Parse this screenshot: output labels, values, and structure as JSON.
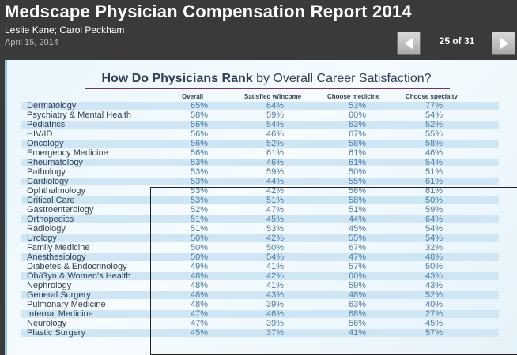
{
  "header": {
    "title": "Medscape Physician Compensation Report 2014",
    "authors": "Leslie Kane; Carol Peckham",
    "date": "April 15, 2014",
    "page_indicator": "25 of 31"
  },
  "chart": {
    "title_bold": "How Do Physicians Rank",
    "title_rest": " by Overall Career Satisfaction?",
    "columns": [
      "Overall",
      "Satisfied w/income",
      "Choose medicine",
      "Choose specialty"
    ],
    "rows": [
      {
        "specialty": "Dermatology",
        "overall": "65%",
        "income": "64%",
        "medicine": "53%",
        "specialty_choice": "77%"
      },
      {
        "specialty": "Psychiatry & Mental Health",
        "overall": "58%",
        "income": "59%",
        "medicine": "60%",
        "specialty_choice": "54%"
      },
      {
        "specialty": "Pediatrics",
        "overall": "56%",
        "income": "54%",
        "medicine": "63%",
        "specialty_choice": "52%"
      },
      {
        "specialty": "HIV/ID",
        "overall": "56%",
        "income": "46%",
        "medicine": "67%",
        "specialty_choice": "55%"
      },
      {
        "specialty": "Oncology",
        "overall": "56%",
        "income": "52%",
        "medicine": "58%",
        "specialty_choice": "58%"
      },
      {
        "specialty": "Emergency Medicine",
        "overall": "56%",
        "income": "61%",
        "medicine": "61%",
        "specialty_choice": "46%"
      },
      {
        "specialty": "Rheumatology",
        "overall": "53%",
        "income": "46%",
        "medicine": "61%",
        "specialty_choice": "54%"
      },
      {
        "specialty": "Pathology",
        "overall": "53%",
        "income": "59%",
        "medicine": "50%",
        "specialty_choice": "51%"
      },
      {
        "specialty": "Cardiology",
        "overall": "53%",
        "income": "44%",
        "medicine": "55%",
        "specialty_choice": "61%"
      },
      {
        "specialty": "Ophthalmology",
        "overall": "53%",
        "income": "42%",
        "medicine": "56%",
        "specialty_choice": "61%"
      },
      {
        "specialty": "Critical Care",
        "overall": "53%",
        "income": "51%",
        "medicine": "58%",
        "specialty_choice": "50%"
      },
      {
        "specialty": "Gastroenterology",
        "overall": "52%",
        "income": "47%",
        "medicine": "51%",
        "specialty_choice": "59%"
      },
      {
        "specialty": "Orthopedics",
        "overall": "51%",
        "income": "45%",
        "medicine": "44%",
        "specialty_choice": "64%"
      },
      {
        "specialty": "Radiology",
        "overall": "51%",
        "income": "53%",
        "medicine": "45%",
        "specialty_choice": "54%"
      },
      {
        "specialty": "Urology",
        "overall": "50%",
        "income": "42%",
        "medicine": "55%",
        "specialty_choice": "54%"
      },
      {
        "specialty": "Family Medicine",
        "overall": "50%",
        "income": "50%",
        "medicine": "67%",
        "specialty_choice": "32%"
      },
      {
        "specialty": "Anesthesiology",
        "overall": "50%",
        "income": "54%",
        "medicine": "47%",
        "specialty_choice": "48%"
      },
      {
        "specialty": "Diabetes & Endocrinology",
        "overall": "49%",
        "income": "41%",
        "medicine": "57%",
        "specialty_choice": "50%"
      },
      {
        "specialty": "Ob/Gyn & Women's Health",
        "overall": "48%",
        "income": "42%",
        "medicine": "60%",
        "specialty_choice": "43%"
      },
      {
        "specialty": "Nephrology",
        "overall": "48%",
        "income": "41%",
        "medicine": "59%",
        "specialty_choice": "43%"
      },
      {
        "specialty": "General Surgery",
        "overall": "48%",
        "income": "43%",
        "medicine": "48%",
        "specialty_choice": "52%"
      },
      {
        "specialty": "Pulmonary Medicine",
        "overall": "48%",
        "income": "39%",
        "medicine": "63%",
        "specialty_choice": "40%"
      },
      {
        "specialty": "Internal Medicine",
        "overall": "47%",
        "income": "46%",
        "medicine": "68%",
        "specialty_choice": "27%"
      },
      {
        "specialty": "Neurology",
        "overall": "47%",
        "income": "39%",
        "medicine": "56%",
        "specialty_choice": "45%"
      },
      {
        "specialty": "Plastic Surgery",
        "overall": "45%",
        "income": "37%",
        "medicine": "41%",
        "specialty_choice": "57%"
      }
    ]
  },
  "icons": {
    "prev": "chevron-left-icon",
    "next": "chevron-right-icon"
  },
  "colors": {
    "background": "#3a3a3a",
    "title_text": "#2e3f55",
    "value_text": "#4a7ba8",
    "title_rule": "#7a2f6b",
    "row_shade": "#cfe7f4"
  }
}
